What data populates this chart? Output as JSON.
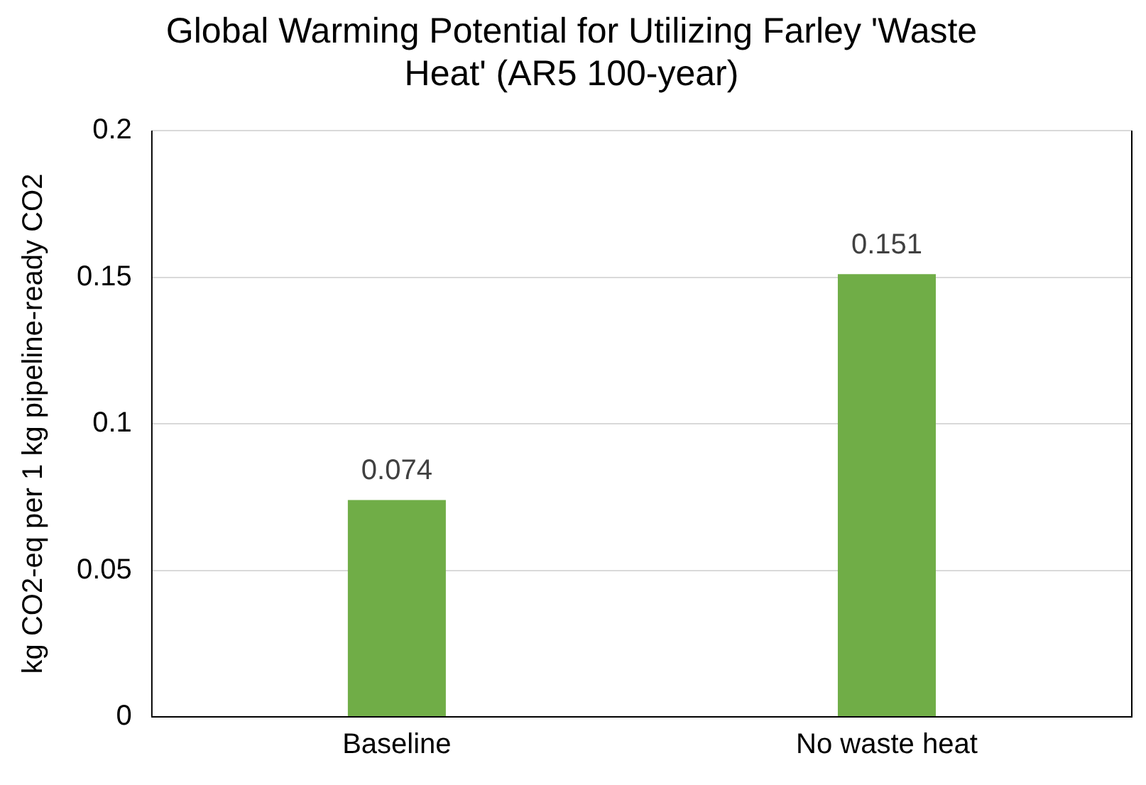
{
  "chart_data": {
    "type": "bar",
    "title": "Global Warming Potential for Utilizing Farley 'Waste Heat' (AR5 100-year)",
    "ylabel": "kg CO2-eq per 1 kg pipeline-ready CO2",
    "categories": [
      "Baseline",
      "No waste heat"
    ],
    "values": [
      0.074,
      0.151
    ],
    "color": "#70ad47",
    "ylim": [
      0,
      0.2
    ],
    "yticks": [
      0,
      0.05,
      0.1,
      0.15,
      0.2
    ],
    "grid": "y",
    "data_labels": true,
    "legend": false
  }
}
